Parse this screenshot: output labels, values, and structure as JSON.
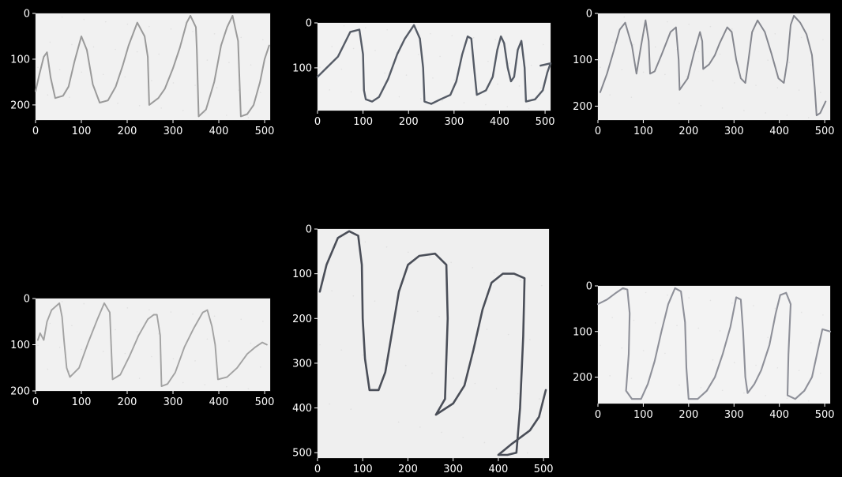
{
  "figure": {
    "background": "#000000",
    "text_color": "#ffffff"
  },
  "chart_data": [
    {
      "type": "image",
      "xlim": [
        0,
        512
      ],
      "ylim": [
        0,
        233
      ],
      "xticks": [
        0,
        100,
        200,
        300,
        400,
        500
      ],
      "yticks": [
        0,
        100,
        200
      ],
      "paper_color": "#f1f1f1",
      "ink_color": "#9a9a9a",
      "ink_width": 2,
      "trace": [
        [
          0,
          170
        ],
        [
          8,
          135
        ],
        [
          18,
          95
        ],
        [
          25,
          85
        ],
        [
          33,
          140
        ],
        [
          43,
          185
        ],
        [
          60,
          180
        ],
        [
          72,
          160
        ],
        [
          85,
          105
        ],
        [
          100,
          50
        ],
        [
          112,
          80
        ],
        [
          125,
          155
        ],
        [
          140,
          195
        ],
        [
          158,
          190
        ],
        [
          175,
          160
        ],
        [
          190,
          115
        ],
        [
          203,
          70
        ],
        [
          222,
          20
        ],
        [
          238,
          50
        ],
        [
          245,
          95
        ],
        [
          248,
          200
        ],
        [
          268,
          185
        ],
        [
          282,
          165
        ],
        [
          300,
          120
        ],
        [
          315,
          75
        ],
        [
          330,
          20
        ],
        [
          338,
          5
        ],
        [
          350,
          30
        ],
        [
          352,
          80
        ],
        [
          356,
          225
        ],
        [
          372,
          210
        ],
        [
          390,
          150
        ],
        [
          405,
          70
        ],
        [
          418,
          30
        ],
        [
          430,
          5
        ],
        [
          442,
          60
        ],
        [
          445,
          140
        ],
        [
          448,
          225
        ],
        [
          462,
          220
        ],
        [
          476,
          200
        ],
        [
          490,
          150
        ],
        [
          500,
          100
        ],
        [
          510,
          70
        ]
      ]
    },
    {
      "type": "image",
      "xlim": [
        0,
        512
      ],
      "ylim": [
        0,
        195
      ],
      "xticks": [
        0,
        100,
        200,
        300,
        400,
        500
      ],
      "yticks": [
        0,
        100
      ],
      "paper_color": "#f2f2f2",
      "ink_color": "#555b66",
      "ink_width": 2.4,
      "trace": [
        [
          0,
          120
        ],
        [
          20,
          100
        ],
        [
          45,
          75
        ],
        [
          72,
          20
        ],
        [
          92,
          15
        ],
        [
          100,
          70
        ],
        [
          102,
          150
        ],
        [
          106,
          170
        ],
        [
          120,
          175
        ],
        [
          135,
          165
        ],
        [
          155,
          125
        ],
        [
          175,
          70
        ],
        [
          192,
          35
        ],
        [
          212,
          5
        ],
        [
          225,
          35
        ],
        [
          232,
          100
        ],
        [
          235,
          175
        ],
        [
          250,
          180
        ],
        [
          270,
          170
        ],
        [
          292,
          160
        ],
        [
          305,
          130
        ],
        [
          318,
          70
        ],
        [
          330,
          30
        ],
        [
          338,
          35
        ],
        [
          345,
          110
        ],
        [
          350,
          160
        ],
        [
          370,
          150
        ],
        [
          385,
          120
        ],
        [
          395,
          60
        ],
        [
          403,
          30
        ],
        [
          410,
          45
        ],
        [
          418,
          100
        ],
        [
          425,
          130
        ],
        [
          432,
          120
        ],
        [
          440,
          60
        ],
        [
          448,
          40
        ],
        [
          455,
          100
        ],
        [
          458,
          175
        ],
        [
          478,
          170
        ],
        [
          495,
          150
        ],
        [
          505,
          110
        ],
        [
          512,
          90
        ],
        [
          490,
          95
        ]
      ]
    },
    {
      "type": "image",
      "xlim": [
        0,
        512
      ],
      "ylim": [
        0,
        230
      ],
      "xticks": [
        0,
        100,
        200,
        300,
        400,
        500
      ],
      "yticks": [
        0,
        100,
        200
      ],
      "paper_color": "#f0f0f0",
      "ink_color": "#85878f",
      "ink_width": 2,
      "trace": [
        [
          5,
          170
        ],
        [
          20,
          130
        ],
        [
          35,
          80
        ],
        [
          48,
          35
        ],
        [
          60,
          20
        ],
        [
          75,
          70
        ],
        [
          85,
          130
        ],
        [
          95,
          70
        ],
        [
          105,
          15
        ],
        [
          112,
          60
        ],
        [
          115,
          130
        ],
        [
          125,
          125
        ],
        [
          140,
          90
        ],
        [
          160,
          40
        ],
        [
          172,
          30
        ],
        [
          178,
          100
        ],
        [
          180,
          165
        ],
        [
          198,
          140
        ],
        [
          212,
          85
        ],
        [
          225,
          40
        ],
        [
          230,
          60
        ],
        [
          232,
          120
        ],
        [
          245,
          110
        ],
        [
          258,
          90
        ],
        [
          268,
          65
        ],
        [
          285,
          30
        ],
        [
          295,
          40
        ],
        [
          305,
          100
        ],
        [
          315,
          140
        ],
        [
          325,
          150
        ],
        [
          332,
          100
        ],
        [
          340,
          40
        ],
        [
          352,
          15
        ],
        [
          368,
          40
        ],
        [
          382,
          85
        ],
        [
          398,
          140
        ],
        [
          410,
          150
        ],
        [
          418,
          100
        ],
        [
          425,
          25
        ],
        [
          432,
          5
        ],
        [
          446,
          20
        ],
        [
          460,
          45
        ],
        [
          472,
          90
        ],
        [
          478,
          160
        ],
        [
          482,
          220
        ],
        [
          490,
          215
        ],
        [
          502,
          190
        ]
      ]
    },
    {
      "type": "image",
      "xlim": [
        0,
        512
      ],
      "ylim": [
        0,
        200
      ],
      "xticks": [
        0,
        100,
        200,
        300,
        400,
        500
      ],
      "yticks": [
        0,
        100,
        200
      ],
      "paper_color": "#f1f1f1",
      "ink_color": "#a2a2a2",
      "ink_width": 1.9,
      "trace": [
        [
          5,
          90
        ],
        [
          10,
          75
        ],
        [
          18,
          90
        ],
        [
          25,
          50
        ],
        [
          35,
          25
        ],
        [
          52,
          10
        ],
        [
          58,
          40
        ],
        [
          62,
          90
        ],
        [
          68,
          150
        ],
        [
          75,
          170
        ],
        [
          95,
          150
        ],
        [
          115,
          95
        ],
        [
          135,
          45
        ],
        [
          150,
          10
        ],
        [
          162,
          30
        ],
        [
          165,
          100
        ],
        [
          168,
          175
        ],
        [
          185,
          165
        ],
        [
          205,
          125
        ],
        [
          225,
          80
        ],
        [
          245,
          45
        ],
        [
          258,
          35
        ],
        [
          265,
          35
        ],
        [
          272,
          80
        ],
        [
          275,
          190
        ],
        [
          288,
          185
        ],
        [
          305,
          160
        ],
        [
          325,
          105
        ],
        [
          345,
          65
        ],
        [
          365,
          30
        ],
        [
          375,
          25
        ],
        [
          385,
          60
        ],
        [
          392,
          100
        ],
        [
          398,
          175
        ],
        [
          418,
          170
        ],
        [
          440,
          150
        ],
        [
          462,
          120
        ],
        [
          480,
          105
        ],
        [
          495,
          95
        ],
        [
          505,
          100
        ]
      ]
    },
    {
      "type": "image",
      "xlim": [
        0,
        512
      ],
      "ylim": [
        0,
        512
      ],
      "xticks": [
        0,
        100,
        200,
        300,
        400,
        500
      ],
      "yticks": [
        0,
        100,
        200,
        300,
        400,
        500
      ],
      "paper_color": "#efefef",
      "ink_color": "#4a4e58",
      "ink_width": 2.6,
      "trace": [
        [
          5,
          140
        ],
        [
          20,
          80
        ],
        [
          45,
          20
        ],
        [
          70,
          5
        ],
        [
          90,
          15
        ],
        [
          98,
          80
        ],
        [
          100,
          200
        ],
        [
          105,
          290
        ],
        [
          115,
          360
        ],
        [
          135,
          360
        ],
        [
          150,
          320
        ],
        [
          165,
          230
        ],
        [
          180,
          140
        ],
        [
          200,
          80
        ],
        [
          225,
          60
        ],
        [
          260,
          55
        ],
        [
          285,
          80
        ],
        [
          288,
          200
        ],
        [
          282,
          380
        ],
        [
          262,
          415
        ],
        [
          300,
          390
        ],
        [
          325,
          350
        ],
        [
          345,
          270
        ],
        [
          365,
          180
        ],
        [
          385,
          120
        ],
        [
          410,
          100
        ],
        [
          435,
          100
        ],
        [
          458,
          110
        ],
        [
          455,
          240
        ],
        [
          448,
          400
        ],
        [
          440,
          500
        ],
        [
          420,
          505
        ],
        [
          400,
          505
        ],
        [
          430,
          480
        ],
        [
          470,
          450
        ],
        [
          490,
          420
        ],
        [
          505,
          360
        ]
      ]
    },
    {
      "type": "image",
      "xlim": [
        0,
        512
      ],
      "ylim": [
        0,
        258
      ],
      "xticks": [
        0,
        100,
        200,
        300,
        400,
        500
      ],
      "yticks": [
        0,
        100,
        200
      ],
      "paper_color": "#f3f3f3",
      "ink_color": "#8e9099",
      "ink_width": 2.1,
      "trace": [
        [
          0,
          40
        ],
        [
          20,
          30
        ],
        [
          40,
          15
        ],
        [
          55,
          5
        ],
        [
          65,
          8
        ],
        [
          70,
          60
        ],
        [
          68,
          150
        ],
        [
          62,
          230
        ],
        [
          75,
          248
        ],
        [
          95,
          248
        ],
        [
          110,
          215
        ],
        [
          125,
          165
        ],
        [
          140,
          100
        ],
        [
          155,
          40
        ],
        [
          170,
          5
        ],
        [
          183,
          12
        ],
        [
          192,
          80
        ],
        [
          195,
          180
        ],
        [
          200,
          248
        ],
        [
          220,
          248
        ],
        [
          240,
          230
        ],
        [
          258,
          200
        ],
        [
          275,
          150
        ],
        [
          292,
          90
        ],
        [
          305,
          25
        ],
        [
          315,
          30
        ],
        [
          320,
          100
        ],
        [
          325,
          200
        ],
        [
          330,
          235
        ],
        [
          345,
          215
        ],
        [
          360,
          185
        ],
        [
          378,
          130
        ],
        [
          392,
          60
        ],
        [
          402,
          20
        ],
        [
          415,
          15
        ],
        [
          425,
          40
        ],
        [
          420,
          150
        ],
        [
          418,
          240
        ],
        [
          435,
          248
        ],
        [
          455,
          230
        ],
        [
          472,
          200
        ],
        [
          485,
          140
        ],
        [
          495,
          95
        ],
        [
          512,
          100
        ]
      ]
    }
  ]
}
